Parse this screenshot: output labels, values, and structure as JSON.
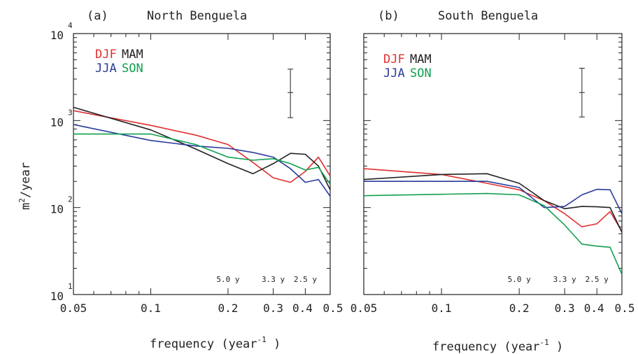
{
  "figure": {
    "ylabel": "m",
    "ylabel_exp": "2",
    "ylabel_unit": "/year",
    "xlabel": "frequency (year",
    "xlabel_exp": "-1",
    "xlabel_close": " )"
  },
  "chart_data": [
    {
      "type": "line",
      "panel_label": "(a)",
      "title": "North Benguela",
      "xscale": "log",
      "yscale": "log",
      "xlim": [
        0.05,
        0.5
      ],
      "ylim": [
        10,
        10000
      ],
      "x_ticks": [
        {
          "value": 0.05,
          "label": "0.05"
        },
        {
          "value": 0.1,
          "label": "0.1"
        },
        {
          "value": 0.2,
          "label": "0.2"
        },
        {
          "value": 0.3,
          "label": "0.3"
        },
        {
          "value": 0.4,
          "label": "0.4"
        },
        {
          "value": 0.5,
          "label": "0.5"
        }
      ],
      "y_ticks": [
        {
          "value": 10,
          "base": "10",
          "exp": "1"
        },
        {
          "value": 100,
          "base": "10",
          "exp": "2"
        },
        {
          "value": 1000,
          "base": "10",
          "exp": "3"
        },
        {
          "value": 10000,
          "base": "10",
          "exp": "4"
        }
      ],
      "period_labels": [
        {
          "x": 0.2,
          "text": "5.0 y"
        },
        {
          "x": 0.3,
          "text": "3.3 y"
        },
        {
          "x": 0.4,
          "text": "2.5 y"
        }
      ],
      "error_bar": {
        "x": 0.35,
        "center": 2100,
        "low": 1080,
        "high": 3900
      },
      "legend": [
        {
          "label": "DJF",
          "color": "#e03030"
        },
        {
          "label": "MAM",
          "color": "#222222"
        },
        {
          "label": "JJA",
          "color": "#2a3a9a"
        },
        {
          "label": "SON",
          "color": "#10a050"
        }
      ],
      "series": [
        {
          "name": "DJF",
          "color": "#e03030",
          "x": [
            0.05,
            0.1,
            0.15,
            0.2,
            0.25,
            0.3,
            0.35,
            0.4,
            0.45,
            0.5
          ],
          "y": [
            1300,
            880,
            680,
            530,
            330,
            220,
            195,
            260,
            380,
            230
          ]
        },
        {
          "name": "MAM",
          "color": "#222222",
          "x": [
            0.05,
            0.1,
            0.15,
            0.2,
            0.25,
            0.3,
            0.35,
            0.4,
            0.45,
            0.5
          ],
          "y": [
            1420,
            780,
            470,
            320,
            245,
            320,
            420,
            410,
            300,
            160
          ]
        },
        {
          "name": "JJA",
          "color": "#2a3a9a",
          "x": [
            0.05,
            0.1,
            0.15,
            0.2,
            0.25,
            0.3,
            0.35,
            0.4,
            0.45,
            0.5
          ],
          "y": [
            900,
            590,
            510,
            480,
            430,
            380,
            280,
            195,
            210,
            135
          ]
        },
        {
          "name": "SON",
          "color": "#10a050",
          "x": [
            0.05,
            0.1,
            0.15,
            0.2,
            0.25,
            0.3,
            0.35,
            0.4,
            0.45,
            0.5
          ],
          "y": [
            700,
            700,
            530,
            380,
            350,
            365,
            320,
            270,
            290,
            185
          ]
        }
      ]
    },
    {
      "type": "line",
      "panel_label": "(b)",
      "title": "South Benguela",
      "xscale": "log",
      "yscale": "log",
      "xlim": [
        0.05,
        0.5
      ],
      "ylim": [
        10,
        10000
      ],
      "x_ticks": [
        {
          "value": 0.05,
          "label": "0.05"
        },
        {
          "value": 0.1,
          "label": "0.1"
        },
        {
          "value": 0.2,
          "label": "0.2"
        },
        {
          "value": 0.3,
          "label": "0.3"
        },
        {
          "value": 0.4,
          "label": "0.4"
        },
        {
          "value": 0.5,
          "label": "0.5"
        }
      ],
      "y_ticks": [],
      "period_labels": [
        {
          "x": 0.2,
          "text": "5.0 y"
        },
        {
          "x": 0.3,
          "text": "3.3 y"
        },
        {
          "x": 0.4,
          "text": "2.5 y"
        }
      ],
      "error_bar": {
        "x": 0.35,
        "center": 2100,
        "low": 1100,
        "high": 4000
      },
      "legend": [
        {
          "label": "DJF",
          "color": "#e03030"
        },
        {
          "label": "MAM",
          "color": "#222222"
        },
        {
          "label": "JJA",
          "color": "#2a3a9a"
        },
        {
          "label": "SON",
          "color": "#10a050"
        }
      ],
      "series": [
        {
          "name": "DJF",
          "color": "#e03030",
          "x": [
            0.05,
            0.1,
            0.15,
            0.2,
            0.25,
            0.3,
            0.35,
            0.4,
            0.45,
            0.5
          ],
          "y": [
            280,
            240,
            190,
            160,
            120,
            85,
            60,
            65,
            90,
            53
          ]
        },
        {
          "name": "MAM",
          "color": "#222222",
          "x": [
            0.05,
            0.1,
            0.15,
            0.2,
            0.25,
            0.3,
            0.35,
            0.4,
            0.45,
            0.5
          ],
          "y": [
            210,
            240,
            245,
            190,
            120,
            97,
            103,
            102,
            100,
            52
          ]
        },
        {
          "name": "JJA",
          "color": "#2a3a9a",
          "x": [
            0.05,
            0.1,
            0.15,
            0.2,
            0.25,
            0.3,
            0.35,
            0.4,
            0.45,
            0.5
          ],
          "y": [
            200,
            200,
            200,
            170,
            100,
            103,
            140,
            162,
            160,
            85
          ]
        },
        {
          "name": "SON",
          "color": "#10a050",
          "x": [
            0.05,
            0.1,
            0.15,
            0.2,
            0.25,
            0.3,
            0.35,
            0.4,
            0.45,
            0.5
          ],
          "y": [
            137,
            142,
            145,
            140,
            105,
            63,
            38,
            36,
            35,
            17
          ]
        }
      ]
    }
  ]
}
